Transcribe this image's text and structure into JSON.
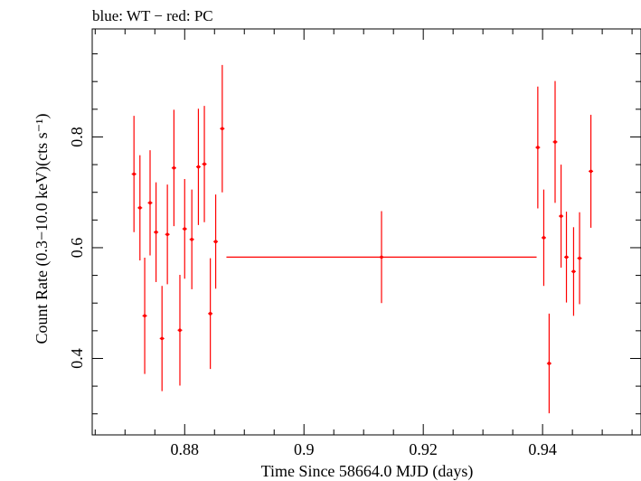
{
  "chart_data": {
    "type": "scatter",
    "title": "blue: WT − red: PC",
    "xlabel": "Time Since 58664.0 MJD (days)",
    "ylabel": "Count Rate (0.3−10.0 keV)(cts s⁻¹)",
    "xlim": [
      0.8645,
      0.9565
    ],
    "ylim": [
      0.262,
      0.995
    ],
    "x_ticks": [
      0.88,
      0.9,
      0.92,
      0.94
    ],
    "x_tick_labels": [
      "0.88",
      "0.9",
      "0.92",
      "0.94"
    ],
    "y_ticks": [
      0.4,
      0.6,
      0.8
    ],
    "y_tick_labels": [
      "0.4",
      "0.6",
      "0.8"
    ],
    "x_minor_step": 0.005,
    "y_minor_step": 0.05,
    "grid": false,
    "series": [
      {
        "name": "PC",
        "color": "#ff0000",
        "points": [
          {
            "x": 0.8715,
            "y": 0.733,
            "xerr": 0.0,
            "yerr": 0.105
          },
          {
            "x": 0.8725,
            "y": 0.672,
            "xerr": 0.0,
            "yerr": 0.095
          },
          {
            "x": 0.8733,
            "y": 0.477,
            "xerr": 0.0,
            "yerr": 0.105
          },
          {
            "x": 0.8742,
            "y": 0.681,
            "xerr": 0.0,
            "yerr": 0.095
          },
          {
            "x": 0.8752,
            "y": 0.628,
            "xerr": 0.0,
            "yerr": 0.09
          },
          {
            "x": 0.8762,
            "y": 0.436,
            "xerr": 0.0,
            "yerr": 0.095
          },
          {
            "x": 0.8771,
            "y": 0.624,
            "xerr": 0.0,
            "yerr": 0.09
          },
          {
            "x": 0.8782,
            "y": 0.744,
            "xerr": 0.0,
            "yerr": 0.105
          },
          {
            "x": 0.8792,
            "y": 0.451,
            "xerr": 0.0,
            "yerr": 0.1
          },
          {
            "x": 0.88,
            "y": 0.634,
            "xerr": 0.0,
            "yerr": 0.09
          },
          {
            "x": 0.8812,
            "y": 0.615,
            "xerr": 0.0,
            "yerr": 0.09
          },
          {
            "x": 0.8823,
            "y": 0.746,
            "xerr": 0.0,
            "yerr": 0.105
          },
          {
            "x": 0.8833,
            "y": 0.751,
            "xerr": 0.0,
            "yerr": 0.105
          },
          {
            "x": 0.8843,
            "y": 0.481,
            "xerr": 0.0,
            "yerr": 0.1
          },
          {
            "x": 0.8852,
            "y": 0.611,
            "xerr": 0.0,
            "yerr": 0.085
          },
          {
            "x": 0.8863,
            "y": 0.815,
            "xerr": 0.0,
            "yerr": 0.115
          },
          {
            "x": 0.913,
            "y": 0.583,
            "xerr": 0.026,
            "yerr": 0.083
          },
          {
            "x": 0.9392,
            "y": 0.781,
            "xerr": 0.0,
            "yerr": 0.11
          },
          {
            "x": 0.9402,
            "y": 0.618,
            "xerr": 0.0,
            "yerr": 0.087
          },
          {
            "x": 0.9411,
            "y": 0.391,
            "xerr": 0.0,
            "yerr": 0.09
          },
          {
            "x": 0.9421,
            "y": 0.791,
            "xerr": 0.0,
            "yerr": 0.11
          },
          {
            "x": 0.9431,
            "y": 0.657,
            "xerr": 0.0,
            "yerr": 0.093
          },
          {
            "x": 0.944,
            "y": 0.583,
            "xerr": 0.0,
            "yerr": 0.082
          },
          {
            "x": 0.9452,
            "y": 0.557,
            "xerr": 0.0,
            "yerr": 0.08
          },
          {
            "x": 0.9462,
            "y": 0.581,
            "xerr": 0.0,
            "yerr": 0.083
          },
          {
            "x": 0.9481,
            "y": 0.738,
            "xerr": 0.0,
            "yerr": 0.102
          }
        ]
      }
    ]
  }
}
